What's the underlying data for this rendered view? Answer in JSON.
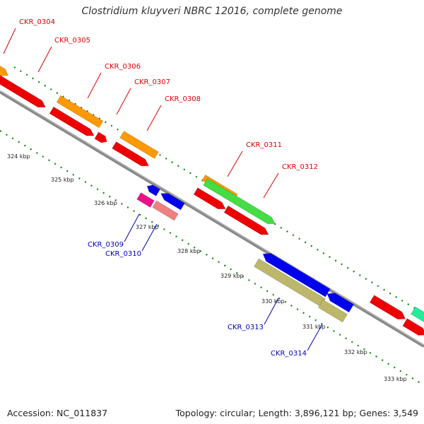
{
  "title": "Clostridium kluyveri NBRC 12016, complete genome",
  "footer": {
    "accession": "Accession: NC_011837",
    "topology": "Topology: circular; Length: 3,896,121 bp; Genes: 3,549"
  },
  "colors": {
    "backbone": "#888888",
    "tick": "#118811",
    "label_forward": "#dd0000",
    "label_reverse": "#0000bb",
    "red": "#ee0000",
    "orange": "#ff9900",
    "green": "#44dd44",
    "blue": "#0000ee",
    "pink": "#ee1188",
    "salmon": "#f08080",
    "khaki": "#bdb76b",
    "teal": "#22ee99"
  },
  "scale_ticks": [
    "324 kbp",
    "325 kbp",
    "326 kbp",
    "327 kbp",
    "328 kbp",
    "329 kbp",
    "330 kbp",
    "331 kbp",
    "332 kbp",
    "333 kbp"
  ],
  "genes": [
    {
      "label": "CKR_0304",
      "strand": "forward"
    },
    {
      "label": "CKR_0305",
      "strand": "forward"
    },
    {
      "label": "CKR_0306",
      "strand": "forward"
    },
    {
      "label": "CKR_0307",
      "strand": "forward"
    },
    {
      "label": "CKR_0308",
      "strand": "forward"
    },
    {
      "label": "CKR_0311",
      "strand": "forward"
    },
    {
      "label": "CKR_0312",
      "strand": "forward"
    },
    {
      "label": "CKR_0309",
      "strand": "reverse"
    },
    {
      "label": "CKR_0310",
      "strand": "reverse"
    },
    {
      "label": "CKR_0313",
      "strand": "reverse"
    },
    {
      "label": "CKR_0314",
      "strand": "reverse"
    }
  ]
}
